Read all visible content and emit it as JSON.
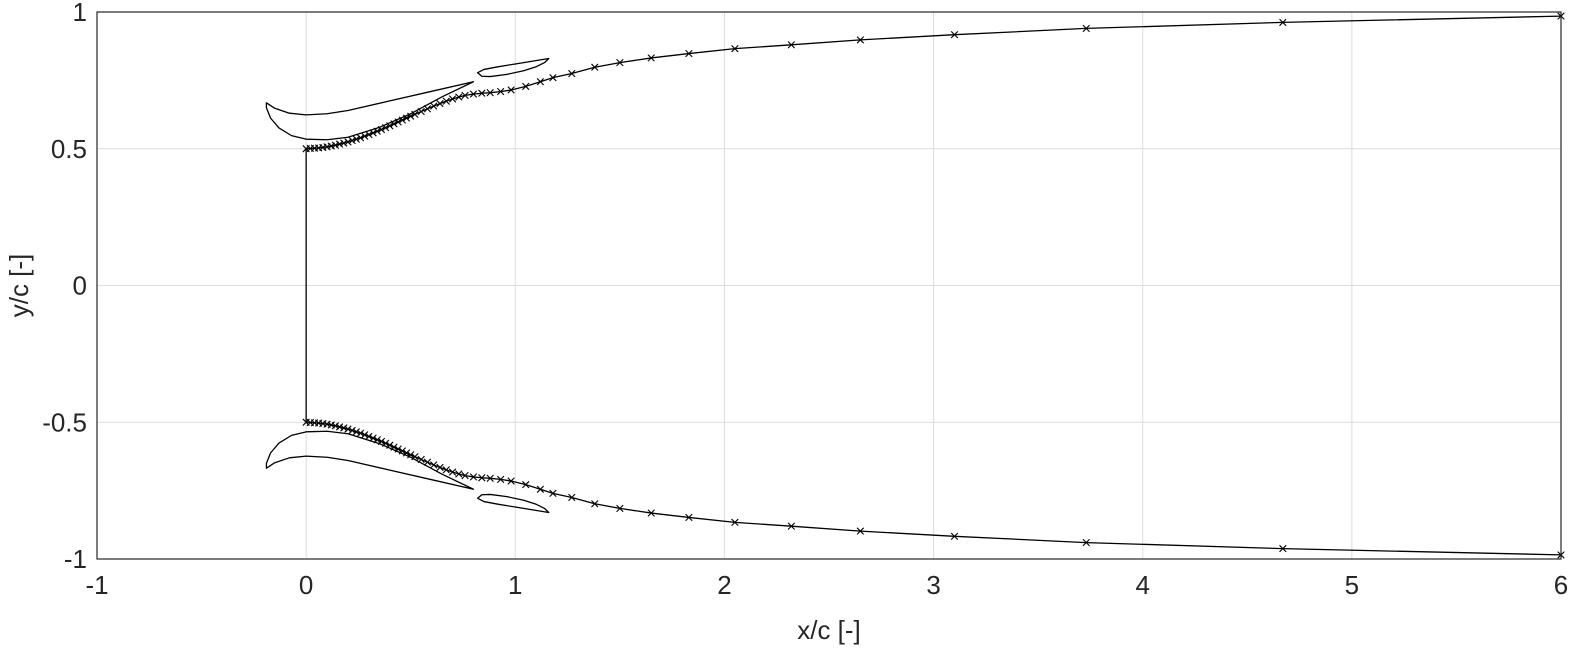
{
  "chart_data": {
    "type": "line",
    "title": "",
    "xlabel": "x/c [-]",
    "ylabel": "y/c [-]",
    "xlim": [
      -1,
      6
    ],
    "ylim": [
      -1,
      1
    ],
    "xticks": [
      -1,
      0,
      1,
      2,
      3,
      4,
      5,
      6
    ],
    "yticks": [
      -1,
      -0.5,
      0,
      0.5,
      1
    ],
    "xtick_labels": [
      "-1",
      "0",
      "1",
      "2",
      "3",
      "4",
      "5",
      "6"
    ],
    "ytick_labels": [
      "-1",
      "-0.5",
      "0",
      "0.5",
      "1"
    ],
    "grid": true,
    "legend": "none",
    "colors": {
      "line": "#000000",
      "grid": "#dcdcdc",
      "axes": "#262626"
    },
    "series": [
      {
        "marker": "x",
        "symmetric_about_y0": true,
        "points": [
          [
            0.0,
            0.5
          ],
          [
            0.02,
            0.501
          ],
          [
            0.04,
            0.502
          ],
          [
            0.06,
            0.503
          ],
          [
            0.08,
            0.505
          ],
          [
            0.1,
            0.507
          ],
          [
            0.12,
            0.51
          ],
          [
            0.14,
            0.513
          ],
          [
            0.16,
            0.517
          ],
          [
            0.18,
            0.521
          ],
          [
            0.2,
            0.525
          ],
          [
            0.22,
            0.53
          ],
          [
            0.24,
            0.535
          ],
          [
            0.26,
            0.54
          ],
          [
            0.28,
            0.546
          ],
          [
            0.3,
            0.552
          ],
          [
            0.32,
            0.558
          ],
          [
            0.34,
            0.564
          ],
          [
            0.36,
            0.57
          ],
          [
            0.38,
            0.577
          ],
          [
            0.4,
            0.584
          ],
          [
            0.42,
            0.591
          ],
          [
            0.44,
            0.598
          ],
          [
            0.46,
            0.605
          ],
          [
            0.48,
            0.612
          ],
          [
            0.5,
            0.619
          ],
          [
            0.52,
            0.626
          ],
          [
            0.55,
            0.636
          ],
          [
            0.58,
            0.646
          ],
          [
            0.61,
            0.656
          ],
          [
            0.64,
            0.665
          ],
          [
            0.67,
            0.674
          ],
          [
            0.7,
            0.682
          ],
          [
            0.73,
            0.689
          ],
          [
            0.76,
            0.695
          ],
          [
            0.8,
            0.7
          ],
          [
            0.84,
            0.703
          ],
          [
            0.88,
            0.705
          ],
          [
            0.93,
            0.709
          ],
          [
            0.98,
            0.715
          ],
          [
            1.05,
            0.728
          ],
          [
            1.12,
            0.745
          ],
          [
            1.18,
            0.76
          ],
          [
            1.27,
            0.775
          ],
          [
            1.38,
            0.798
          ],
          [
            1.5,
            0.815
          ],
          [
            1.65,
            0.832
          ],
          [
            1.83,
            0.848
          ],
          [
            2.05,
            0.866
          ],
          [
            2.32,
            0.88
          ],
          [
            2.65,
            0.898
          ],
          [
            3.1,
            0.917
          ],
          [
            3.73,
            0.94
          ],
          [
            4.67,
            0.962
          ],
          [
            6.0,
            0.985
          ]
        ]
      },
      {
        "marker": "none",
        "closed": true,
        "symmetric_about_y0": true,
        "points": [
          [
            0.8,
            0.745
          ],
          [
            0.6,
            0.71
          ],
          [
            0.4,
            0.675
          ],
          [
            0.2,
            0.64
          ],
          [
            0.1,
            0.628
          ],
          [
            0.0,
            0.624
          ],
          [
            -0.08,
            0.63
          ],
          [
            -0.15,
            0.648
          ],
          [
            -0.19,
            0.668
          ],
          [
            -0.19,
            0.65
          ],
          [
            -0.17,
            0.612
          ],
          [
            -0.13,
            0.576
          ],
          [
            -0.07,
            0.548
          ],
          [
            0.0,
            0.535
          ],
          [
            0.1,
            0.533
          ],
          [
            0.2,
            0.542
          ],
          [
            0.35,
            0.578
          ],
          [
            0.5,
            0.628
          ],
          [
            0.65,
            0.69
          ],
          [
            0.8,
            0.745
          ]
        ]
      },
      {
        "marker": "none",
        "closed": true,
        "symmetric_about_y0": true,
        "points": [
          [
            0.82,
            0.778
          ],
          [
            0.85,
            0.79
          ],
          [
            0.92,
            0.8
          ],
          [
            1.0,
            0.81
          ],
          [
            1.08,
            0.82
          ],
          [
            1.16,
            0.83
          ],
          [
            1.14,
            0.815
          ],
          [
            1.1,
            0.8
          ],
          [
            1.04,
            0.785
          ],
          [
            0.96,
            0.772
          ],
          [
            0.88,
            0.764
          ],
          [
            0.84,
            0.765
          ],
          [
            0.82,
            0.778
          ]
        ]
      },
      {
        "marker": "none",
        "points": [
          [
            0.0,
            0.5
          ],
          [
            0.0,
            -0.5
          ]
        ]
      }
    ]
  }
}
